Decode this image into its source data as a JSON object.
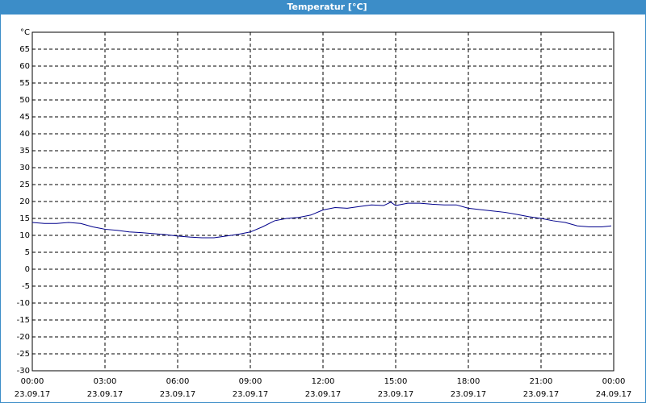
{
  "chart_data": {
    "type": "line",
    "title": "Temperatur [°C]",
    "x": [
      0,
      0.5,
      1,
      1.5,
      2,
      2.5,
      3,
      3.5,
      4,
      4.5,
      5,
      5.5,
      6,
      6.5,
      7,
      7.5,
      8,
      8.5,
      9,
      9.5,
      10,
      10.5,
      11,
      11.5,
      12,
      12.5,
      13,
      13.5,
      14,
      14.5,
      14.8,
      15,
      15.5,
      16,
      16.5,
      17,
      17.5,
      18,
      18.5,
      19,
      19.5,
      20,
      20.5,
      21,
      21.5,
      22,
      22.5,
      23,
      23.5,
      23.9
    ],
    "series": [
      {
        "color": "#00008b",
        "values": [
          13.8,
          13.5,
          13.5,
          13.8,
          13.5,
          12.5,
          11.8,
          11.5,
          11,
          10.8,
          10.5,
          10.2,
          9.8,
          9.5,
          9.3,
          9.3,
          9.8,
          10.3,
          11,
          12.5,
          14.3,
          15,
          15.3,
          16,
          17.5,
          18.2,
          18,
          18.5,
          19,
          18.8,
          19.8,
          18.8,
          19.5,
          19.5,
          19.2,
          19,
          19,
          18,
          17.6,
          17.2,
          16.8,
          16.2,
          15.5,
          15,
          14.3,
          13.8,
          12.8,
          12.5,
          12.5,
          12.8
        ]
      }
    ],
    "xlim": [
      0,
      24
    ],
    "xticks": [
      {
        "value": 0,
        "label": "00:00"
      },
      {
        "value": 3,
        "label": "03:00"
      },
      {
        "value": 6,
        "label": "06:00"
      },
      {
        "value": 9,
        "label": "09:00"
      },
      {
        "value": 12,
        "label": "12:00"
      },
      {
        "value": 15,
        "label": "15:00"
      },
      {
        "value": 18,
        "label": "18:00"
      },
      {
        "value": 21,
        "label": "21:00"
      },
      {
        "value": 24,
        "label": "00:00"
      }
    ],
    "xtick_dates": [
      "23.09.17",
      "23.09.17",
      "23.09.17",
      "23.09.17",
      "23.09.17",
      "23.09.17",
      "23.09.17",
      "23.09.17",
      "24.09.17"
    ],
    "ylim": [
      -30,
      70
    ],
    "yticks": [
      -30,
      -25,
      -20,
      -15,
      -10,
      -5,
      0,
      5,
      10,
      15,
      20,
      25,
      30,
      35,
      40,
      45,
      50,
      55,
      60,
      65,
      {
        "value": 70,
        "label": "°C"
      }
    ],
    "grid": true
  }
}
